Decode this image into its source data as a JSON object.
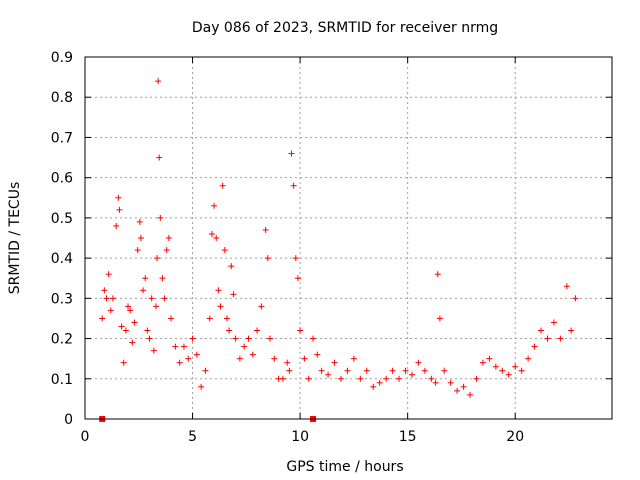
{
  "chart_data": {
    "type": "scatter",
    "title": "Day 086 of 2023, SRMTID for receiver nrmg",
    "xlabel": "GPS time / hours",
    "ylabel": "SRMTID / TECUs",
    "xlim": [
      0,
      24.5
    ],
    "ylim": [
      0,
      0.9
    ],
    "x_ticks": [
      0,
      5,
      10,
      15,
      20
    ],
    "y_ticks": [
      0,
      0.1,
      0.2,
      0.3,
      0.4,
      0.5,
      0.6,
      0.7,
      0.8,
      0.9
    ],
    "grid": true,
    "marker": "+",
    "series": [
      {
        "name": "SRMTID",
        "color": "#ff0000",
        "x": [
          0.8,
          0.9,
          1.0,
          1.1,
          1.2,
          1.3,
          1.45,
          1.55,
          1.6,
          1.7,
          1.8,
          1.9,
          2.0,
          2.1,
          2.2,
          2.3,
          2.45,
          2.55,
          2.6,
          2.7,
          2.8,
          2.9,
          3.0,
          3.1,
          3.2,
          3.3,
          3.35,
          3.4,
          3.45,
          3.5,
          3.6,
          3.7,
          3.8,
          3.9,
          4.0,
          4.2,
          4.4,
          4.6,
          4.8,
          5.0,
          5.2,
          5.4,
          5.6,
          5.8,
          5.9,
          6.0,
          6.1,
          6.2,
          6.3,
          6.4,
          6.5,
          6.6,
          6.7,
          6.8,
          6.9,
          7.0,
          7.2,
          7.4,
          7.6,
          7.8,
          8.0,
          8.2,
          8.4,
          8.5,
          8.6,
          8.8,
          9.0,
          9.2,
          9.4,
          9.5,
          9.6,
          9.7,
          9.8,
          9.9,
          10.0,
          10.2,
          10.4,
          10.6,
          10.8,
          11.0,
          11.3,
          11.6,
          11.9,
          12.2,
          12.5,
          12.8,
          13.1,
          13.4,
          13.7,
          14.0,
          14.3,
          14.6,
          14.9,
          15.2,
          15.5,
          15.8,
          16.1,
          16.3,
          16.4,
          16.5,
          16.7,
          17.0,
          17.3,
          17.6,
          17.9,
          18.2,
          18.5,
          18.8,
          19.1,
          19.4,
          19.7,
          20.0,
          20.3,
          20.6,
          20.9,
          21.2,
          21.5,
          21.8,
          22.1,
          22.4,
          22.6,
          22.8
        ],
        "y": [
          0.25,
          0.32,
          0.3,
          0.36,
          0.27,
          0.3,
          0.48,
          0.55,
          0.52,
          0.23,
          0.14,
          0.22,
          0.28,
          0.27,
          0.19,
          0.24,
          0.42,
          0.49,
          0.45,
          0.32,
          0.35,
          0.22,
          0.2,
          0.3,
          0.17,
          0.28,
          0.4,
          0.84,
          0.65,
          0.5,
          0.35,
          0.3,
          0.42,
          0.45,
          0.25,
          0.18,
          0.14,
          0.18,
          0.15,
          0.2,
          0.16,
          0.08,
          0.12,
          0.25,
          0.46,
          0.53,
          0.45,
          0.32,
          0.28,
          0.58,
          0.42,
          0.25,
          0.22,
          0.38,
          0.31,
          0.2,
          0.15,
          0.18,
          0.2,
          0.16,
          0.22,
          0.28,
          0.47,
          0.4,
          0.2,
          0.15,
          0.1,
          0.1,
          0.14,
          0.12,
          0.66,
          0.58,
          0.4,
          0.35,
          0.22,
          0.15,
          0.1,
          0.2,
          0.16,
          0.12,
          0.11,
          0.14,
          0.1,
          0.12,
          0.15,
          0.1,
          0.12,
          0.08,
          0.09,
          0.1,
          0.12,
          0.1,
          0.12,
          0.11,
          0.14,
          0.12,
          0.1,
          0.09,
          0.36,
          0.25,
          0.12,
          0.09,
          0.07,
          0.08,
          0.06,
          0.1,
          0.14,
          0.15,
          0.13,
          0.12,
          0.11,
          0.13,
          0.12,
          0.15,
          0.18,
          0.22,
          0.2,
          0.24,
          0.2,
          0.33,
          0.22,
          0.3
        ],
        "baseline_markers_x": [
          0.8,
          10.6
        ],
        "baseline_markers_y": [
          0,
          0
        ]
      }
    ]
  }
}
